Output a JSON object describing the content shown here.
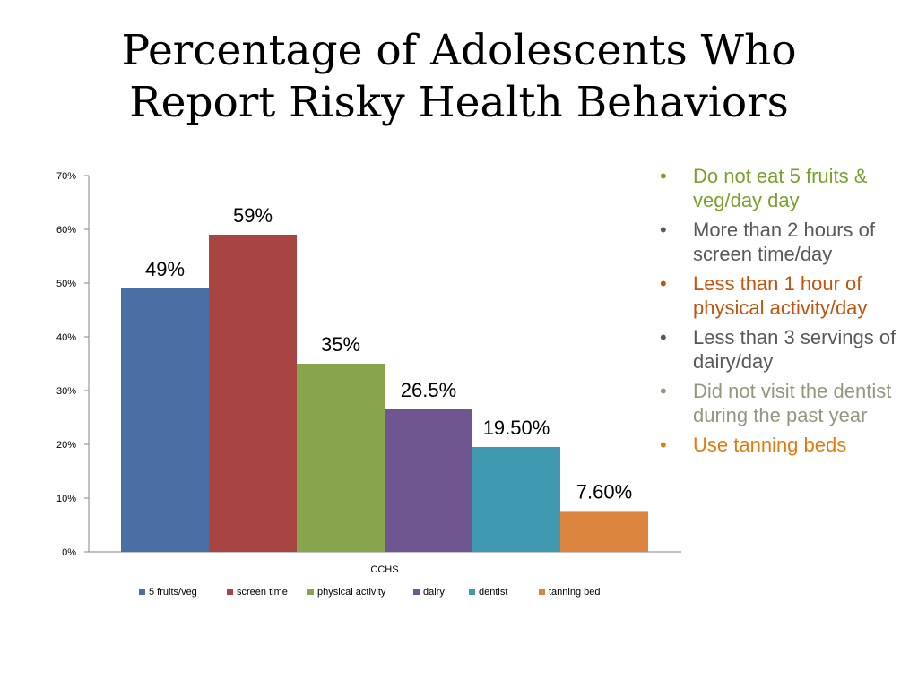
{
  "title": {
    "line1": "Percentage of Adolescents Who",
    "line2": "Report Risky Health Behaviors"
  },
  "chart_data": {
    "type": "bar",
    "xlabel": "CCHS",
    "ylabel": "",
    "ylim": [
      0,
      70
    ],
    "yticks": [
      0,
      10,
      20,
      30,
      40,
      50,
      60,
      70
    ],
    "ytick_labels": [
      "0%",
      "10%",
      "20%",
      "30%",
      "40%",
      "50%",
      "60%",
      "70%"
    ],
    "grid": false,
    "legend_position": "bottom",
    "series": [
      {
        "name": "5 fruits/veg",
        "value": 49,
        "label": "49%",
        "color": "#4A6FA5"
      },
      {
        "name": "screen time",
        "value": 59,
        "label": "59%",
        "color": "#A84543"
      },
      {
        "name": "physical activity",
        "value": 35,
        "label": "35%",
        "color": "#87A54D"
      },
      {
        "name": "dairy",
        "value": 26.5,
        "label": "26.5%",
        "color": "#6F5690"
      },
      {
        "name": "dentist",
        "value": 19.5,
        "label": "19.50%",
        "color": "#3F99B1"
      },
      {
        "name": "tanning bed",
        "value": 7.6,
        "label": "7.60%",
        "color": "#DB843D"
      }
    ]
  },
  "bullets": [
    {
      "text": "Do not eat 5 fruits & veg/day day",
      "color": "#77A22D"
    },
    {
      "text": "More than 2 hours of screen time/day",
      "color": "#595959"
    },
    {
      "text": "Less than 1 hour of physical activity/day",
      "color": "#C0550F"
    },
    {
      "text": "Less than 3 servings of dairy/day",
      "color": "#595959"
    },
    {
      "text": "Did not visit the dentist during the past year",
      "color": "#93987E"
    },
    {
      "text": "Use tanning beds",
      "color": "#E07B11"
    }
  ],
  "bullet_symbol": "•"
}
